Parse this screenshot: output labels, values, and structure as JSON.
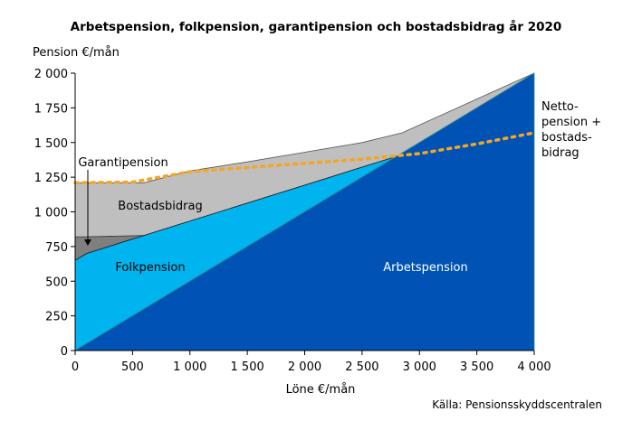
{
  "chart_data": {
    "type": "area",
    "title": "Arbetspension, folkpension, garantipension och bostadsbidrag år 2020",
    "xlabel": "Löne €/mån",
    "ylabel": "Pension €/mån",
    "source": "Källa: Pensionsskyddscentralen",
    "xlim": [
      0,
      4000
    ],
    "ylim": [
      0,
      2000
    ],
    "x_ticks": [
      0,
      500,
      1000,
      1500,
      2000,
      2500,
      3000,
      3500,
      4000
    ],
    "x_tick_labels": [
      "0",
      "500",
      "1 000",
      "1 500",
      "2 000",
      "2 500",
      "3 000",
      "3 500",
      "4 000"
    ],
    "y_ticks": [
      0,
      250,
      500,
      750,
      1000,
      1250,
      1500,
      1750,
      2000
    ],
    "y_tick_labels": [
      "0",
      "250",
      "500",
      "750",
      "1 000",
      "1 250",
      "1 500",
      "1 750",
      "2 000"
    ],
    "grid": false,
    "series": [
      {
        "name": "Arbetspension",
        "color": "#0053b4",
        "x": [
          0,
          4000
        ],
        "y": [
          0,
          2000
        ]
      },
      {
        "name": "Folkpension",
        "color": "#00b4ef",
        "x": [
          0,
          100,
          600,
          2800
        ],
        "y": [
          650,
          700,
          830,
          1400
        ]
      },
      {
        "name": "Garantipension",
        "color": "#7f7f7f",
        "x": [
          0,
          100,
          600
        ],
        "y": [
          820,
          820,
          830
        ]
      },
      {
        "name": "Bostadsbidrag",
        "color": "#bfbfbf",
        "x": [
          0,
          600,
          1000,
          1500,
          2000,
          2500,
          2850,
          4000
        ],
        "y": [
          1210,
          1210,
          1295,
          1360,
          1430,
          1500,
          1570,
          2000
        ]
      },
      {
        "name": "Netto-\npension +\nbostads-\nbidrag",
        "color": "#f5a623",
        "style": "dotted",
        "x": [
          0,
          500,
          1000,
          1500,
          2000,
          2500,
          3000,
          3500,
          4000
        ],
        "y": [
          1210,
          1215,
          1290,
          1320,
          1350,
          1380,
          1420,
          1490,
          1570
        ]
      }
    ],
    "labels": {
      "arbetspension": "Arbetspension",
      "folkpension": "Folkpension",
      "bostadsbidrag": "Bostadsbidrag",
      "garantipension": "Garantipension",
      "netto_line1": "Netto-",
      "netto_line2": "pension +",
      "netto_line3": "bostads-",
      "netto_line4": "bidrag"
    }
  }
}
